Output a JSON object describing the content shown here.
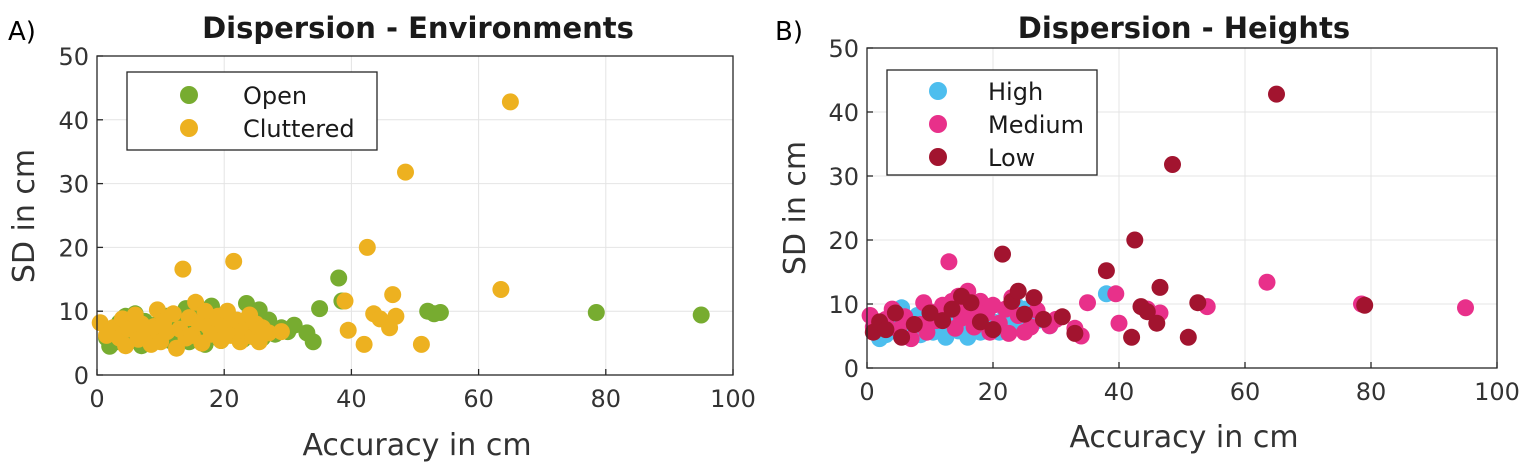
{
  "chart_data": [
    {
      "type": "scatter",
      "panel_label": "A)",
      "title": "Dispersion - Environments",
      "xlabel": "Accuracy in cm",
      "ylabel": "SD in cm",
      "xlim": [
        0,
        100
      ],
      "ylim": [
        0,
        50
      ],
      "xticks": [
        "0",
        "20",
        "40",
        "60",
        "80",
        "100"
      ],
      "yticks": [
        "0",
        "10",
        "20",
        "30",
        "40",
        "50"
      ],
      "grid": true,
      "legend_position": "top-left",
      "series": [
        {
          "name": "Open",
          "color": "#77AC30",
          "points": [
            [
              1.5,
              5.8
            ],
            [
              2,
              4.5
            ],
            [
              2.5,
              7
            ],
            [
              3,
              5.2
            ],
            [
              3.5,
              8.2
            ],
            [
              4,
              6
            ],
            [
              4.5,
              9.2
            ],
            [
              5,
              5.5
            ],
            [
              5.5,
              7.8
            ],
            [
              6,
              9.6
            ],
            [
              6.5,
              6.5
            ],
            [
              7,
              4.6
            ],
            [
              7.5,
              8.4
            ],
            [
              8,
              6.8
            ],
            [
              9,
              5.2
            ],
            [
              9.5,
              8
            ],
            [
              10,
              6.3
            ],
            [
              11,
              9.2
            ],
            [
              11.5,
              5.4
            ],
            [
              12,
              7.4
            ],
            [
              12.5,
              9.4
            ],
            [
              13,
              6
            ],
            [
              13.5,
              8.2
            ],
            [
              14,
              10.4
            ],
            [
              14.5,
              5.2
            ],
            [
              15,
              7.2
            ],
            [
              15.5,
              11.2
            ],
            [
              16,
              6.4
            ],
            [
              16.5,
              9
            ],
            [
              17,
              4.8
            ],
            [
              17.5,
              8
            ],
            [
              18,
              10.8
            ],
            [
              18.5,
              6
            ],
            [
              19,
              7.6
            ],
            [
              19.5,
              5.4
            ],
            [
              20,
              9.2
            ],
            [
              21,
              6.8
            ],
            [
              22,
              8.2
            ],
            [
              23,
              5.6
            ],
            [
              23.5,
              11.2
            ],
            [
              24,
              9
            ],
            [
              25,
              7.2
            ],
            [
              25.5,
              10.2
            ],
            [
              26,
              5.8
            ],
            [
              27,
              8.6
            ],
            [
              28,
              6.4
            ],
            [
              29,
              7.4
            ],
            [
              30,
              6.8
            ],
            [
              31,
              7.8
            ],
            [
              33,
              6.6
            ],
            [
              34,
              5.2
            ],
            [
              35,
              10.4
            ],
            [
              38,
              15.2
            ],
            [
              38.5,
              11.6
            ],
            [
              52,
              10
            ],
            [
              53,
              9.6
            ],
            [
              54,
              9.8
            ],
            [
              78.5,
              9.8
            ],
            [
              95,
              9.4
            ]
          ]
        },
        {
          "name": "Cluttered",
          "color": "#EDB120",
          "points": [
            [
              0.5,
              8.2
            ],
            [
              1.5,
              6.2
            ],
            [
              2.5,
              7.4
            ],
            [
              3.5,
              5.8
            ],
            [
              4,
              8.8
            ],
            [
              4.5,
              4.6
            ],
            [
              5,
              7.2
            ],
            [
              6,
              9.4
            ],
            [
              6.5,
              5.6
            ],
            [
              7,
              8
            ],
            [
              8,
              6.4
            ],
            [
              8.5,
              4.8
            ],
            [
              9,
              7.6
            ],
            [
              9.5,
              10.2
            ],
            [
              10,
              5.2
            ],
            [
              10.5,
              8.4
            ],
            [
              11,
              6.8
            ],
            [
              12,
              9.6
            ],
            [
              12.5,
              4.2
            ],
            [
              13,
              7.2
            ],
            [
              13.5,
              16.6
            ],
            [
              14,
              5.8
            ],
            [
              14.5,
              9
            ],
            [
              15,
              6.2
            ],
            [
              15.5,
              11.4
            ],
            [
              16,
              8.2
            ],
            [
              16.5,
              5
            ],
            [
              17,
              10
            ],
            [
              17.5,
              7.6
            ],
            [
              18,
              6.4
            ],
            [
              19,
              9.2
            ],
            [
              19.5,
              5.4
            ],
            [
              20,
              7.8
            ],
            [
              20.5,
              10
            ],
            [
              21,
              6.2
            ],
            [
              21.5,
              17.8
            ],
            [
              22,
              8.6
            ],
            [
              22.5,
              5.2
            ],
            [
              23,
              7
            ],
            [
              24,
              9.4
            ],
            [
              24.5,
              6
            ],
            [
              25,
              8
            ],
            [
              25.5,
              5.2
            ],
            [
              26,
              7.4
            ],
            [
              27,
              6.6
            ],
            [
              29,
              6.8
            ],
            [
              39,
              11.6
            ],
            [
              39.5,
              7
            ],
            [
              42,
              4.8
            ],
            [
              42.5,
              20
            ],
            [
              43.5,
              9.6
            ],
            [
              44.5,
              8.8
            ],
            [
              46.5,
              12.6
            ],
            [
              46,
              7.4
            ],
            [
              47,
              9.2
            ],
            [
              48.5,
              31.8
            ],
            [
              51,
              4.8
            ],
            [
              63.5,
              13.4
            ],
            [
              65,
              42.8
            ]
          ]
        }
      ]
    },
    {
      "type": "scatter",
      "panel_label": "B)",
      "title": "Dispersion - Heights",
      "xlabel": "Accuracy in cm",
      "ylabel": "SD in cm",
      "xlim": [
        0,
        100
      ],
      "ylim": [
        0,
        50
      ],
      "xticks": [
        "0",
        "20",
        "40",
        "60",
        "80",
        "100"
      ],
      "yticks": [
        "0",
        "10",
        "20",
        "30",
        "40",
        "50"
      ],
      "grid": true,
      "legend_position": "top-left",
      "series": [
        {
          "name": "High",
          "color": "#4DBEEE",
          "points": [
            [
              2,
              4.6
            ],
            [
              2.5,
              6.4
            ],
            [
              3,
              5.2
            ],
            [
              3.5,
              7.4
            ],
            [
              4,
              5.8
            ],
            [
              4.5,
              8.4
            ],
            [
              5,
              6.4
            ],
            [
              5.5,
              9.4
            ],
            [
              6,
              5.4
            ],
            [
              6.5,
              7.6
            ],
            [
              7,
              6
            ],
            [
              8,
              8.2
            ],
            [
              8.5,
              5.2
            ],
            [
              9,
              6.8
            ],
            [
              10,
              7.4
            ],
            [
              10.5,
              5.6
            ],
            [
              11,
              8.6
            ],
            [
              12,
              6.2
            ],
            [
              12.5,
              4.8
            ],
            [
              13,
              7.2
            ],
            [
              14,
              9.4
            ],
            [
              14.5,
              5.8
            ],
            [
              15,
              6.6
            ],
            [
              15.5,
              8.4
            ],
            [
              16,
              4.8
            ],
            [
              16.5,
              9.4
            ],
            [
              17,
              6.8
            ],
            [
              18,
              5.6
            ],
            [
              19,
              8
            ],
            [
              19.5,
              6.4
            ],
            [
              20,
              7.2
            ],
            [
              21,
              5.6
            ],
            [
              22,
              8.8
            ],
            [
              23,
              6.4
            ],
            [
              23.5,
              10
            ],
            [
              24,
              7.2
            ],
            [
              25,
              9.2
            ],
            [
              26,
              6.6
            ],
            [
              27,
              7.4
            ],
            [
              29,
              6.6
            ],
            [
              38,
              11.6
            ]
          ]
        },
        {
          "name": "Medium",
          "color": "#E8308A",
          "points": [
            [
              0.5,
              8.2
            ],
            [
              1,
              6.4
            ],
            [
              3,
              7.6
            ],
            [
              4,
              9.2
            ],
            [
              5,
              6
            ],
            [
              6,
              8
            ],
            [
              7,
              4.6
            ],
            [
              8.5,
              6.8
            ],
            [
              9,
              10.2
            ],
            [
              9.5,
              5.6
            ],
            [
              10,
              8.8
            ],
            [
              11,
              7.4
            ],
            [
              12,
              9.8
            ],
            [
              13,
              16.6
            ],
            [
              13.5,
              10.4
            ],
            [
              14,
              6.2
            ],
            [
              14.5,
              11.2
            ],
            [
              15,
              7.8
            ],
            [
              15.5,
              10
            ],
            [
              16,
              12
            ],
            [
              16.5,
              8.6
            ],
            [
              17,
              6.4
            ],
            [
              18,
              10.4
            ],
            [
              19,
              8.6
            ],
            [
              19.5,
              5.6
            ],
            [
              20,
              9.8
            ],
            [
              21,
              7
            ],
            [
              22,
              9.2
            ],
            [
              22.5,
              5.4
            ],
            [
              23,
              11
            ],
            [
              24,
              8.2
            ],
            [
              25,
              5.6
            ],
            [
              26,
              6.4
            ],
            [
              27,
              9
            ],
            [
              29,
              6.6
            ],
            [
              30,
              7.6
            ],
            [
              33,
              6.2
            ],
            [
              34,
              5
            ],
            [
              35,
              10.2
            ],
            [
              39.5,
              11.6
            ],
            [
              40,
              7
            ],
            [
              44.5,
              9.2
            ],
            [
              46.5,
              8.6
            ],
            [
              54,
              9.6
            ],
            [
              63.5,
              13.4
            ],
            [
              78.5,
              10
            ],
            [
              95,
              9.4
            ]
          ]
        },
        {
          "name": "Low",
          "color": "#A2142F",
          "points": [
            [
              1,
              5.6
            ],
            [
              2,
              7.2
            ],
            [
              3,
              6
            ],
            [
              4.5,
              8.6
            ],
            [
              5.5,
              4.8
            ],
            [
              7.5,
              6.8
            ],
            [
              10,
              8.6
            ],
            [
              12,
              7.4
            ],
            [
              13.5,
              9.2
            ],
            [
              15,
              11.2
            ],
            [
              16.5,
              10.2
            ],
            [
              18,
              7.2
            ],
            [
              20,
              6
            ],
            [
              21.5,
              17.8
            ],
            [
              23,
              10.4
            ],
            [
              24,
              12
            ],
            [
              25,
              8.4
            ],
            [
              26.5,
              11
            ],
            [
              28,
              7.6
            ],
            [
              31,
              8
            ],
            [
              33,
              5.4
            ],
            [
              38,
              15.2
            ],
            [
              42,
              4.8
            ],
            [
              42.5,
              20
            ],
            [
              43.5,
              9.6
            ],
            [
              44.5,
              8.8
            ],
            [
              46.5,
              12.6
            ],
            [
              46,
              7
            ],
            [
              48.5,
              31.8
            ],
            [
              51,
              4.8
            ],
            [
              52.5,
              10.2
            ],
            [
              65,
              42.8
            ],
            [
              79,
              9.8
            ]
          ]
        }
      ]
    }
  ]
}
